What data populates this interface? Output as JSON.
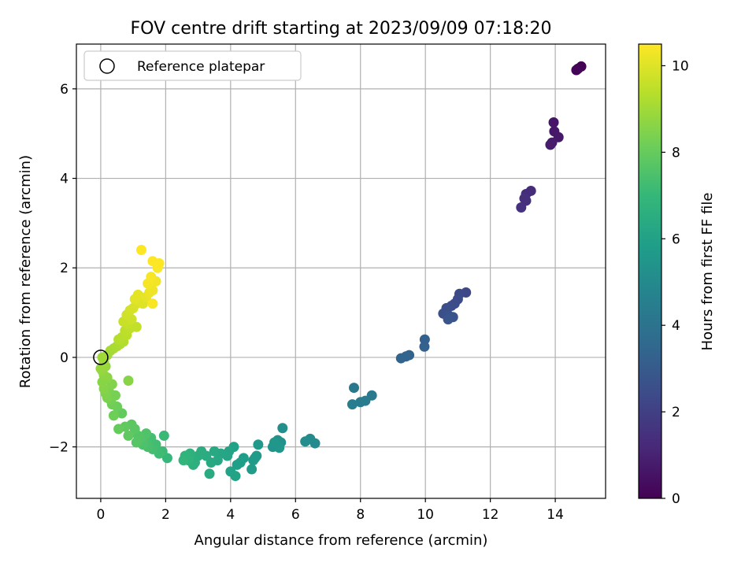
{
  "chart_data": {
    "type": "scatter",
    "title": "FOV centre drift starting at 2023/09/09 07:18:20",
    "xlabel": "Angular distance from reference (arcmin)",
    "ylabel": "Rotation from reference (arcmin)",
    "xlim": [
      -0.75,
      15.55
    ],
    "ylim": [
      -3.15,
      7.0
    ],
    "xticks": [
      0,
      2,
      4,
      6,
      8,
      10,
      12,
      14
    ],
    "yticks": [
      -2,
      0,
      2,
      4,
      6
    ],
    "grid": true,
    "legend": {
      "placement": "top-left",
      "entries": [
        "Reference platepar"
      ]
    },
    "reference_point": {
      "x": 0,
      "y": 0,
      "label": "Reference platepar"
    },
    "colorbar": {
      "label": "Hours from first FF file",
      "colormap": "viridis",
      "range": [
        0,
        10.5
      ],
      "ticks": [
        0,
        2,
        4,
        6,
        8,
        10
      ]
    },
    "series": [
      {
        "points": [
          [
            14.8,
            6.5,
            0.0
          ],
          [
            14.7,
            6.45,
            0.05
          ],
          [
            14.65,
            6.42,
            0.1
          ],
          [
            13.95,
            5.25,
            0.6
          ],
          [
            13.97,
            5.05,
            0.65
          ],
          [
            14.1,
            4.92,
            0.7
          ],
          [
            13.9,
            4.8,
            0.75
          ],
          [
            13.85,
            4.75,
            0.8
          ],
          [
            13.25,
            3.72,
            1.3
          ],
          [
            13.1,
            3.65,
            1.35
          ],
          [
            13.05,
            3.55,
            1.4
          ],
          [
            13.1,
            3.5,
            1.45
          ],
          [
            12.95,
            3.35,
            1.5
          ],
          [
            11.25,
            1.45,
            2.3
          ],
          [
            11.05,
            1.42,
            2.35
          ],
          [
            11.0,
            1.3,
            2.4
          ],
          [
            10.9,
            1.2,
            2.45
          ],
          [
            10.8,
            1.15,
            2.5
          ],
          [
            10.65,
            1.1,
            2.55
          ],
          [
            10.55,
            0.98,
            2.6
          ],
          [
            10.7,
            0.95,
            2.65
          ],
          [
            10.75,
            0.9,
            2.7
          ],
          [
            10.85,
            0.9,
            2.75
          ],
          [
            10.7,
            0.85,
            2.8
          ],
          [
            9.98,
            0.4,
            3.2
          ],
          [
            9.97,
            0.24,
            3.25
          ],
          [
            9.5,
            0.05,
            3.3
          ],
          [
            9.4,
            0.02,
            3.35
          ],
          [
            9.25,
            -0.02,
            3.4
          ],
          [
            7.8,
            -0.68,
            4.2
          ],
          [
            8.35,
            -0.85,
            4.3
          ],
          [
            8.15,
            -0.97,
            4.35
          ],
          [
            8.0,
            -1.0,
            4.4
          ],
          [
            7.75,
            -1.05,
            4.45
          ],
          [
            6.6,
            -1.92,
            5.0
          ],
          [
            6.45,
            -1.82,
            5.05
          ],
          [
            6.3,
            -1.88,
            5.1
          ],
          [
            5.6,
            -1.58,
            5.2
          ],
          [
            5.55,
            -1.9,
            5.3
          ],
          [
            5.45,
            -1.85,
            5.35
          ],
          [
            5.4,
            -1.95,
            5.4
          ],
          [
            5.3,
            -2.0,
            5.45
          ],
          [
            5.5,
            -2.02,
            5.5
          ],
          [
            5.35,
            -1.9,
            5.55
          ],
          [
            4.85,
            -1.95,
            5.6
          ],
          [
            4.8,
            -2.2,
            5.65
          ],
          [
            4.7,
            -2.3,
            5.7
          ],
          [
            4.75,
            -2.25,
            5.72
          ],
          [
            4.65,
            -2.5,
            5.75
          ],
          [
            4.4,
            -2.25,
            5.8
          ],
          [
            4.3,
            -2.35,
            5.85
          ],
          [
            4.2,
            -2.4,
            5.9
          ],
          [
            4.1,
            -2.0,
            5.95
          ],
          [
            4.0,
            -2.55,
            6.0
          ],
          [
            4.15,
            -2.65,
            6.05
          ],
          [
            3.95,
            -2.1,
            6.1
          ],
          [
            3.9,
            -2.2,
            6.15
          ],
          [
            3.7,
            -2.15,
            6.2
          ],
          [
            3.6,
            -2.3,
            6.25
          ],
          [
            3.5,
            -2.1,
            6.3
          ],
          [
            3.4,
            -2.35,
            6.35
          ],
          [
            3.35,
            -2.6,
            6.4
          ],
          [
            3.25,
            -2.2,
            6.45
          ],
          [
            3.1,
            -2.1,
            6.5
          ],
          [
            3.0,
            -2.2,
            6.55
          ],
          [
            2.9,
            -2.35,
            6.6
          ],
          [
            2.85,
            -2.4,
            6.65
          ],
          [
            2.75,
            -2.15,
            6.7
          ],
          [
            2.7,
            -2.3,
            6.75
          ],
          [
            2.6,
            -2.2,
            6.8
          ],
          [
            2.55,
            -2.3,
            6.85
          ],
          [
            2.05,
            -2.25,
            7.0
          ],
          [
            1.95,
            -1.75,
            7.1
          ],
          [
            1.9,
            -2.1,
            7.15
          ],
          [
            1.8,
            -2.15,
            7.2
          ],
          [
            1.7,
            -1.95,
            7.25
          ],
          [
            1.6,
            -2.05,
            7.3
          ],
          [
            1.55,
            -1.8,
            7.35
          ],
          [
            1.45,
            -2.0,
            7.4
          ],
          [
            1.35,
            -1.85,
            7.45
          ],
          [
            1.3,
            -1.95,
            7.5
          ],
          [
            1.4,
            -1.7,
            7.55
          ],
          [
            1.25,
            -1.8,
            7.6
          ],
          [
            1.15,
            -1.75,
            7.65
          ],
          [
            1.1,
            -1.9,
            7.7
          ],
          [
            1.05,
            -1.6,
            7.75
          ],
          [
            0.95,
            -1.5,
            7.8
          ],
          [
            0.85,
            -1.75,
            7.85
          ],
          [
            0.75,
            -1.55,
            7.9
          ],
          [
            0.65,
            -1.25,
            7.95
          ],
          [
            0.55,
            -1.6,
            8.0
          ],
          [
            0.5,
            -1.1,
            8.1
          ],
          [
            0.4,
            -1.3,
            8.15
          ],
          [
            0.35,
            -1.05,
            8.2
          ],
          [
            0.3,
            -0.95,
            8.25
          ],
          [
            0.45,
            -0.85,
            8.3
          ],
          [
            0.25,
            -0.75,
            8.35
          ],
          [
            0.2,
            -0.9,
            8.4
          ],
          [
            0.15,
            -0.8,
            8.45
          ],
          [
            0.35,
            -0.6,
            8.5
          ],
          [
            0.1,
            -0.7,
            8.55
          ],
          [
            0.05,
            -0.55,
            8.6
          ],
          [
            0.2,
            -0.45,
            8.65
          ],
          [
            0.1,
            -0.4,
            8.7
          ],
          [
            0.05,
            -0.3,
            8.75
          ],
          [
            0.15,
            -0.2,
            8.8
          ],
          [
            0.0,
            -0.25,
            8.85
          ],
          [
            0.1,
            -0.1,
            8.9
          ],
          [
            0.05,
            0.0,
            8.95
          ],
          [
            0.85,
            -0.52,
            8.6
          ],
          [
            0.2,
            0.05,
            9.0
          ],
          [
            0.3,
            0.15,
            9.05
          ],
          [
            0.4,
            0.2,
            9.1
          ],
          [
            0.5,
            0.25,
            9.15
          ],
          [
            0.6,
            0.3,
            9.2
          ],
          [
            0.7,
            0.35,
            9.25
          ],
          [
            0.55,
            0.4,
            9.3
          ],
          [
            0.65,
            0.45,
            9.35
          ],
          [
            0.8,
            0.5,
            9.4
          ],
          [
            0.75,
            0.6,
            9.45
          ],
          [
            0.9,
            0.65,
            9.5
          ],
          [
            1.1,
            0.68,
            9.55
          ],
          [
            0.85,
            0.75,
            9.6
          ],
          [
            0.7,
            0.8,
            9.65
          ],
          [
            0.95,
            0.85,
            9.7
          ],
          [
            0.8,
            0.95,
            9.75
          ],
          [
            0.9,
            1.05,
            9.8
          ],
          [
            1.0,
            1.1,
            9.85
          ],
          [
            1.1,
            1.2,
            9.9
          ],
          [
            1.2,
            1.25,
            9.95
          ],
          [
            1.3,
            1.2,
            10.0
          ],
          [
            1.05,
            1.3,
            10.05
          ],
          [
            1.15,
            1.4,
            10.1
          ],
          [
            1.4,
            1.35,
            10.15
          ],
          [
            1.5,
            1.45,
            10.2
          ],
          [
            1.6,
            1.5,
            10.25
          ],
          [
            1.7,
            1.7,
            10.3
          ],
          [
            1.45,
            1.65,
            10.35
          ],
          [
            1.55,
            1.8,
            10.4
          ],
          [
            1.6,
            1.2,
            10.42
          ],
          [
            1.75,
            2.0,
            10.45
          ],
          [
            1.8,
            2.1,
            10.48
          ],
          [
            1.6,
            2.15,
            10.5
          ],
          [
            1.25,
            2.4,
            10.5
          ]
        ]
      }
    ]
  }
}
